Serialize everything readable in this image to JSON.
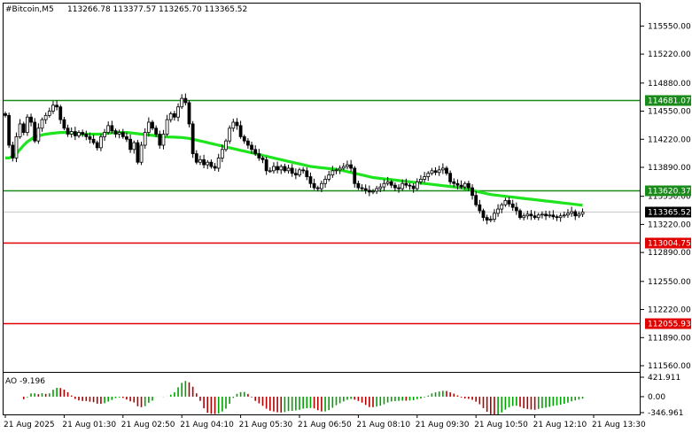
{
  "header": {
    "symbol": "#Bitcoin,M5",
    "ohlc": "113266.78 113377.57 113265.70 113365.52"
  },
  "indicator": {
    "label": "AO -9.196",
    "scale_labels": [
      "421.911",
      "0.00",
      "-346.961"
    ],
    "scale_values": [
      421.911,
      0,
      -346.961
    ]
  },
  "colors": {
    "background": "#ffffff",
    "candle": "#000000",
    "ma_line": "#1ee41e",
    "resistance": "#1a8a1a",
    "support": "#e00000",
    "ao_up": "#00a000",
    "ao_down": "#b00000",
    "grid_text": "#000000"
  },
  "chart_data": {
    "type": "candlestick",
    "title": "",
    "xlabel": "",
    "ylabel": "",
    "ylim": [
      111560,
      115710
    ],
    "y_ticks": [
      {
        "value": 115550,
        "label": "115550.00"
      },
      {
        "value": 115220,
        "label": "115220.00"
      },
      {
        "value": 114880,
        "label": "114880.00"
      },
      {
        "value": 114550,
        "label": "114550.00"
      },
      {
        "value": 114220,
        "label": "114220.00"
      },
      {
        "value": 113890,
        "label": "113890.00"
      },
      {
        "value": 113550,
        "label": "113550.00"
      },
      {
        "value": 113220,
        "label": "113220.00"
      },
      {
        "value": 112890,
        "label": "112890.00"
      },
      {
        "value": 112550,
        "label": "112550.00"
      },
      {
        "value": 112220,
        "label": "112220.00"
      },
      {
        "value": 111890,
        "label": "111890.00"
      },
      {
        "value": 111560,
        "label": "111560.00"
      }
    ],
    "x_ticks": [
      {
        "index": 0,
        "label": "21 Aug 2025"
      },
      {
        "index": 16,
        "label": "21 Aug 01:30"
      },
      {
        "index": 32,
        "label": "21 Aug 02:50"
      },
      {
        "index": 48,
        "label": "21 Aug 04:10"
      },
      {
        "index": 64,
        "label": "21 Aug 05:30"
      },
      {
        "index": 80,
        "label": "21 Aug 06:50"
      },
      {
        "index": 96,
        "label": "21 Aug 08:10"
      },
      {
        "index": 112,
        "label": "21 Aug 09:30"
      },
      {
        "index": 128,
        "label": "21 Aug 10:50"
      },
      {
        "index": 144,
        "label": "21 Aug 12:10"
      },
      {
        "index": 160,
        "label": "21 Aug 13:30"
      }
    ],
    "levels": [
      {
        "value": 114681.07,
        "label": "114681.07",
        "kind": "resistance"
      },
      {
        "value": 113620.37,
        "label": "113620.37",
        "kind": "resistance"
      },
      {
        "value": 113004.75,
        "label": "113004.75",
        "kind": "support"
      },
      {
        "value": 112055.93,
        "label": "112055.93",
        "kind": "support"
      }
    ],
    "current_price": {
      "value": 113365.52,
      "label": "113365.52"
    },
    "closes": [
      114500,
      114150,
      114000,
      114250,
      114400,
      114300,
      114480,
      114420,
      114200,
      114350,
      114450,
      114500,
      114550,
      114620,
      114600,
      114450,
      114350,
      114280,
      114310,
      114260,
      114300,
      114280,
      114250,
      114220,
      114180,
      114120,
      114250,
      114300,
      114380,
      114320,
      114280,
      114300,
      114250,
      114220,
      114100,
      114180,
      113950,
      114150,
      114300,
      114420,
      114350,
      114280,
      114150,
      114280,
      114450,
      114520,
      114480,
      114600,
      114700,
      114650,
      114400,
      114050,
      113950,
      113980,
      113920,
      113950,
      113900,
      113880,
      114000,
      114100,
      114200,
      114350,
      114420,
      114380,
      114250,
      114200,
      114150,
      114100,
      114050,
      114000,
      113980,
      113850,
      113850,
      113900,
      113860,
      113900,
      113850,
      113880,
      113820,
      113800,
      113860,
      113850,
      113780,
      113700,
      113650,
      113640,
      113700,
      113750,
      113800,
      113850,
      113860,
      113880,
      113900,
      113920,
      113880,
      113700,
      113650,
      113640,
      113620,
      113600,
      113610,
      113640,
      113660,
      113700,
      113720,
      113680,
      113650,
      113640,
      113700,
      113680,
      113670,
      113640,
      113720,
      113750,
      113780,
      113820,
      113850,
      113830,
      113860,
      113880,
      113820,
      113720,
      113700,
      113680,
      113660,
      113700,
      113650,
      113560,
      113450,
      113380,
      113300,
      113270,
      113280,
      113350,
      113400,
      113450,
      113500,
      113460,
      113420,
      113380,
      113300,
      113320,
      113340,
      113320,
      113300,
      113330,
      113340,
      113320,
      113330,
      113310,
      113300,
      113320,
      113330,
      113350,
      113370,
      113320,
      113340,
      113365.52
    ],
    "ma": [
      114000,
      114000,
      114020,
      114050,
      114100,
      114150,
      114190,
      114220,
      114250,
      114260,
      114270,
      114280,
      114285,
      114290,
      114295,
      114300,
      114300,
      114300,
      114295,
      114290,
      114285,
      114280,
      114280,
      114280,
      114280,
      114280,
      114280,
      114285,
      114290,
      114295,
      114300,
      114300,
      114300,
      114300,
      114295,
      114290,
      114285,
      114280,
      114275,
      114270,
      114265,
      114260,
      114255,
      114250,
      114248,
      114246,
      114244,
      114242,
      114240,
      114235,
      114230,
      114220,
      114210,
      114200,
      114190,
      114180,
      114170,
      114160,
      114150,
      114140,
      114130,
      114120,
      114110,
      114100,
      114090,
      114080,
      114070,
      114060,
      114050,
      114040,
      114030,
      114020,
      114010,
      114000,
      113990,
      113980,
      113970,
      113960,
      113950,
      113940,
      113930,
      113920,
      113910,
      113900,
      113895,
      113890,
      113885,
      113880,
      113875,
      113870,
      113865,
      113860,
      113850,
      113840,
      113830,
      113820,
      113810,
      113800,
      113790,
      113780,
      113770,
      113765,
      113760,
      113755,
      113750,
      113745,
      113740,
      113735,
      113730,
      113725,
      113720,
      113715,
      113710,
      113705,
      113700,
      113695,
      113690,
      113685,
      113680,
      113675,
      113670,
      113665,
      113660,
      113655,
      113650,
      113640,
      113630,
      113620,
      113610,
      113600,
      113590,
      113580,
      113570,
      113565,
      113560,
      113555,
      113550,
      113545,
      113540,
      113535,
      113530,
      113525,
      113520,
      113515,
      113510,
      113505,
      113500,
      113495,
      113490,
      113485,
      113480,
      113475,
      113470,
      113465,
      113460,
      113455,
      113450,
      113445
    ]
  }
}
